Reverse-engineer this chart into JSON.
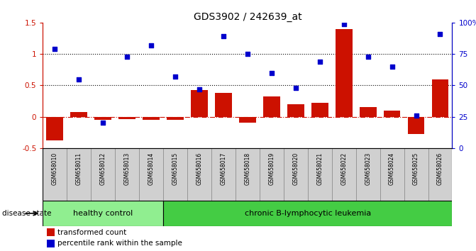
{
  "title": "GDS3902 / 242639_at",
  "samples": [
    "GSM658010",
    "GSM658011",
    "GSM658012",
    "GSM658013",
    "GSM658014",
    "GSM658015",
    "GSM658016",
    "GSM658017",
    "GSM658018",
    "GSM658019",
    "GSM658020",
    "GSM658021",
    "GSM658022",
    "GSM658023",
    "GSM658024",
    "GSM658025",
    "GSM658026"
  ],
  "transformed_count": [
    -0.38,
    0.07,
    -0.05,
    -0.04,
    -0.05,
    -0.05,
    0.43,
    0.38,
    -0.1,
    0.32,
    0.2,
    0.22,
    1.4,
    0.15,
    0.1,
    -0.28,
    0.6
  ],
  "percentile_rank": [
    79,
    55,
    20,
    73,
    82,
    57,
    47,
    89,
    75,
    60,
    48,
    69,
    99,
    73,
    65,
    26,
    91
  ],
  "healthy_control_count": 5,
  "ylim_left": [
    -0.5,
    1.5
  ],
  "ylim_right": [
    0,
    100
  ],
  "dotted_line_values": [
    1.0,
    0.5
  ],
  "zero_line": 0.0,
  "bar_color": "#CC1100",
  "dot_color": "#0000CC",
  "healthy_bg": "#90EE90",
  "leukemia_bg": "#44CC44",
  "label_bg": "#D0D0D0",
  "legend_bar_label": "transformed count",
  "legend_dot_label": "percentile rank within the sample",
  "disease_state_label": "disease state",
  "healthy_label": "healthy control",
  "leukemia_label": "chronic B-lymphocytic leukemia",
  "right_axis_ticks": [
    0,
    25,
    50,
    75,
    100
  ],
  "right_axis_ticklabels": [
    "0",
    "25",
    "50",
    "75",
    "100%"
  ],
  "left_axis_ticks": [
    -0.5,
    0.0,
    0.5,
    1.0,
    1.5
  ],
  "left_axis_ticklabels": [
    "-0.5",
    "0",
    "0.5",
    "1",
    "1.5"
  ]
}
